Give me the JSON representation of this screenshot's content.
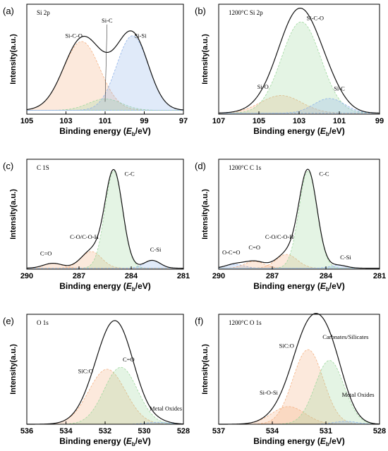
{
  "figure": {
    "xlabel_main": "Binding energy (",
    "xlabel_sym": "E",
    "xlabel_sub": "b",
    "xlabel_end": "/eV)",
    "ylabel": "Intensity(a.u.)"
  },
  "chart_data": [
    {
      "type": "line",
      "panel_label": "(a)",
      "title": "Si 2p",
      "xlim": [
        105,
        97
      ],
      "xticks": [
        105,
        103,
        101,
        99,
        97
      ],
      "xlabel": "Binding energy (Eb/eV)",
      "ylabel": "Intensity(a.u.)",
      "baseline": 0.04,
      "ymax": 1.15,
      "components": [
        {
          "name": "Si-C-O",
          "center": 102.2,
          "fwhm": 2.2,
          "height": 0.72,
          "color": "#f4b183"
        },
        {
          "name": "Si-C",
          "center": 101.0,
          "fwhm": 2.0,
          "height": 0.12,
          "color": "#9fd89f"
        },
        {
          "name": "Si-Si",
          "center": 99.6,
          "fwhm": 1.9,
          "height": 0.78,
          "color": "#8fb3e8"
        }
      ],
      "labels": [
        {
          "text": "Si-C-O",
          "x": 102.6,
          "y": 0.8
        },
        {
          "text": "Si-C",
          "x": 100.9,
          "y": 0.96,
          "leader_to": [
            101.0,
            0.13
          ]
        },
        {
          "text": "Si-Si",
          "x": 99.2,
          "y": 0.8
        }
      ]
    },
    {
      "type": "line",
      "panel_label": "(b)",
      "title": "1200°C Si 2p",
      "xlim": [
        107,
        99
      ],
      "xticks": [
        107,
        105,
        103,
        101,
        99
      ],
      "xlabel": "Binding energy (Eb/eV)",
      "ylabel": "Intensity(a.u.)",
      "baseline": 0.01,
      "ymax": 1.12,
      "components": [
        {
          "name": "Si-O",
          "center": 103.9,
          "fwhm": 2.4,
          "height": 0.18,
          "color": "#f4b183"
        },
        {
          "name": "Si-C-O",
          "center": 102.9,
          "fwhm": 2.3,
          "height": 0.93,
          "color": "#9fd89f"
        },
        {
          "name": "Si-C",
          "center": 101.5,
          "fwhm": 1.8,
          "height": 0.15,
          "color": "#8fb3e8"
        }
      ],
      "labels": [
        {
          "text": "Si-C-O",
          "x": 102.2,
          "y": 0.96
        },
        {
          "text": "Si-O",
          "x": 104.8,
          "y": 0.26
        },
        {
          "text": "Si-C",
          "x": 101.0,
          "y": 0.24
        }
      ]
    },
    {
      "type": "line",
      "panel_label": "(c)",
      "title": "C 1S",
      "xlim": [
        290,
        281
      ],
      "xticks": [
        290,
        287,
        284,
        281
      ],
      "xlabel": "Binding energy (Eb/eV)",
      "ylabel": "Intensity(a.u.)",
      "baseline": 0.01,
      "ymax": 1.12,
      "components": [
        {
          "name": "C=O",
          "center": 288.5,
          "fwhm": 1.3,
          "height": 0.05,
          "color": "#f4b183"
        },
        {
          "name": "C-O/C-O-H",
          "center": 286.3,
          "fwhm": 1.4,
          "height": 0.17,
          "color": "#f4b183"
        },
        {
          "name": "C-C",
          "center": 285.0,
          "fwhm": 1.2,
          "height": 0.99,
          "color": "#9fd89f"
        },
        {
          "name": "C-Si",
          "center": 282.8,
          "fwhm": 1.1,
          "height": 0.08,
          "color": "#8fb3e8"
        }
      ],
      "labels": [
        {
          "text": "C-C",
          "x": 284.1,
          "y": 0.95
        },
        {
          "text": "C-O/C-O-H",
          "x": 286.7,
          "y": 0.31
        },
        {
          "text": "C=O",
          "x": 288.9,
          "y": 0.14
        },
        {
          "text": "C-Si",
          "x": 282.6,
          "y": 0.18
        }
      ]
    },
    {
      "type": "line",
      "panel_label": "(d)",
      "title": "1200°C C 1s",
      "xlim": [
        290,
        281
      ],
      "xticks": [
        290,
        287,
        284,
        281
      ],
      "xlabel": "Binding energy (Eb/eV)",
      "ylabel": "Intensity(a.u.)",
      "baseline": 0.01,
      "ymax": 1.12,
      "components": [
        {
          "name": "O-C=O",
          "center": 289.1,
          "fwhm": 1.2,
          "height": 0.04,
          "color": "#8fb3e8"
        },
        {
          "name": "C=O",
          "center": 288.0,
          "fwhm": 1.3,
          "height": 0.07,
          "color": "#f4b183"
        },
        {
          "name": "C-O/C-O-H",
          "center": 286.2,
          "fwhm": 1.4,
          "height": 0.14,
          "color": "#f4b183"
        },
        {
          "name": "C-C",
          "center": 285.0,
          "fwhm": 1.2,
          "height": 0.99,
          "color": "#9fd89f"
        },
        {
          "name": "C-Si",
          "center": 283.3,
          "fwhm": 1.1,
          "height": 0.03,
          "color": "#8fb3e8"
        }
      ],
      "labels": [
        {
          "text": "C-C",
          "x": 284.1,
          "y": 0.95
        },
        {
          "text": "C-O/C-O-H",
          "x": 286.6,
          "y": 0.31
        },
        {
          "text": "C=O",
          "x": 288.0,
          "y": 0.2
        },
        {
          "text": "O-C=O",
          "x": 289.3,
          "y": 0.15
        },
        {
          "text": "C-Si",
          "x": 282.9,
          "y": 0.1
        }
      ]
    },
    {
      "type": "line",
      "panel_label": "(e)",
      "title": "O 1s",
      "xlim": [
        536,
        528
      ],
      "xticks": [
        536,
        534,
        532,
        530,
        528
      ],
      "xlabel": "Binding energy (Eb/eV)",
      "ylabel": "Intensity(a.u.)",
      "baseline": 0.0,
      "ymax": 1.12,
      "components": [
        {
          "name": "SiC:O",
          "center": 531.9,
          "fwhm": 2.2,
          "height": 0.56,
          "color": "#f4b183"
        },
        {
          "name": "C=O",
          "center": 531.2,
          "fwhm": 2.0,
          "height": 0.58,
          "color": "#9fd89f"
        },
        {
          "name": "Metal Oxides",
          "center": 529.3,
          "fwhm": 1.4,
          "height": 0.02,
          "color": "#8fb3e8"
        }
      ],
      "labels": [
        {
          "text": "C=O",
          "x": 530.8,
          "y": 0.64
        },
        {
          "text": "SiC:O",
          "x": 533.0,
          "y": 0.52
        },
        {
          "text": "Metal Oxides",
          "x": 528.9,
          "y": 0.14
        }
      ]
    },
    {
      "type": "line",
      "panel_label": "(f)",
      "title": "1200°C O 1s",
      "xlim": [
        537,
        528
      ],
      "xticks": [
        537,
        534,
        531,
        528
      ],
      "xlabel": "Binding energy (Eb/eV)",
      "ylabel": "Intensity(a.u.)",
      "baseline": 0.0,
      "ymax": 1.12,
      "components": [
        {
          "name": "Si-O-Si",
          "center": 533.1,
          "fwhm": 2.2,
          "height": 0.18,
          "color": "#f4b183"
        },
        {
          "name": "SiC:O",
          "center": 532.0,
          "fwhm": 2.0,
          "height": 0.76,
          "color": "#f4b183"
        },
        {
          "name": "Carbnates/Silicates",
          "center": 530.8,
          "fwhm": 1.9,
          "height": 0.65,
          "color": "#9fd89f"
        },
        {
          "name": "Metal Oxides",
          "center": 529.9,
          "fwhm": 1.5,
          "height": 0.03,
          "color": "#8fb3e8"
        }
      ],
      "labels": [
        {
          "text": "SiC:O",
          "x": 533.2,
          "y": 0.78
        },
        {
          "text": "Carbnates/Silicates",
          "x": 529.9,
          "y": 0.87
        },
        {
          "text": "Si-O-Si",
          "x": 534.2,
          "y": 0.3
        },
        {
          "text": "Metal Oxides",
          "x": 529.2,
          "y": 0.28
        }
      ]
    }
  ]
}
